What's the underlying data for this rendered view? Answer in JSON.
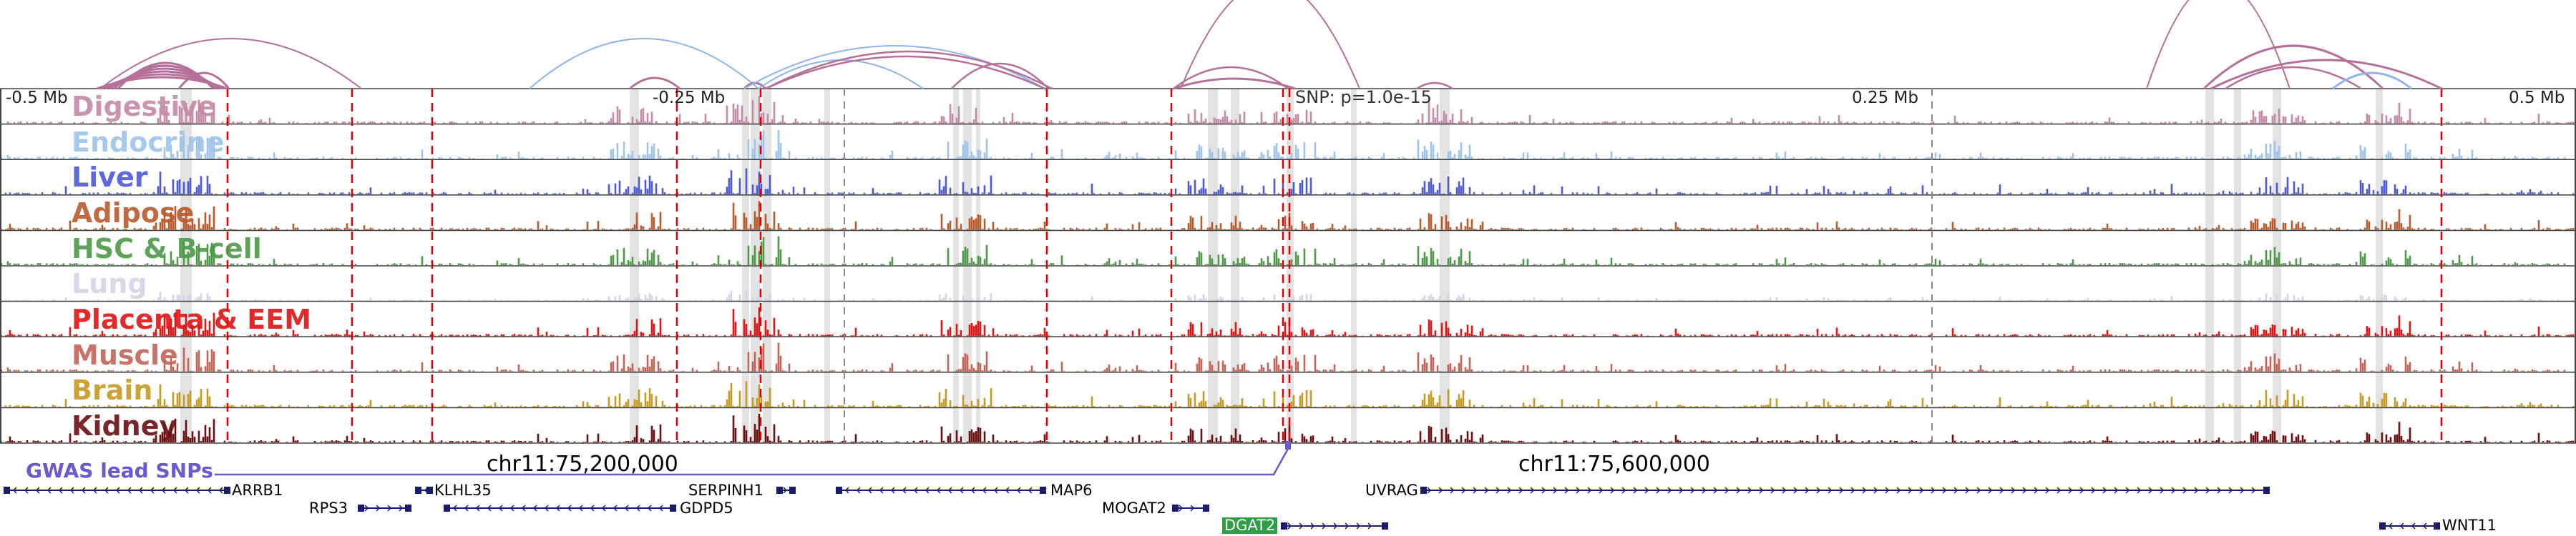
{
  "axis": {
    "ticks": [
      "-0.5 Mb",
      "-0.25 Mb",
      "0.25 Mb",
      "0.5 Mb"
    ],
    "snp_label": "SNP: p=1.0e-15"
  },
  "tracks": [
    {
      "name": "Digestive",
      "color": "#c48aa6"
    },
    {
      "name": "Endocrine",
      "color": "#9ec3ec"
    },
    {
      "name": "Liver",
      "color": "#4c59d9"
    },
    {
      "name": "Adipose",
      "color": "#b95a2c"
    },
    {
      "name": "HSC & B-cell",
      "color": "#4d9a48"
    },
    {
      "name": "Lung",
      "color": "#d5d3e6"
    },
    {
      "name": "Placenta & EEM",
      "color": "#e01414"
    },
    {
      "name": "Muscle",
      "color": "#c46458"
    },
    {
      "name": "Brain",
      "color": "#c79a22"
    },
    {
      "name": "Kidney",
      "color": "#6b0f13"
    }
  ],
  "coordinates": [
    "chr11:75,200,000",
    "chr11:75,600,000"
  ],
  "gwas_label": "GWAS lead SNPs",
  "genes": [
    {
      "name": "ARRB1",
      "strand": "-",
      "row": 0
    },
    {
      "name": "KLHL35",
      "strand": "-",
      "row": 0
    },
    {
      "name": "SERPINH1",
      "strand": "+",
      "row": 0
    },
    {
      "name": "MAP6",
      "strand": "-",
      "row": 0
    },
    {
      "name": "UVRAG",
      "strand": "+",
      "row": 0
    },
    {
      "name": "RPS3",
      "strand": "+",
      "row": 1
    },
    {
      "name": "GDPD5",
      "strand": "-",
      "row": 1
    },
    {
      "name": "MOGAT2",
      "strand": "+",
      "row": 1
    },
    {
      "name": "DGAT2",
      "strand": "+",
      "row": 2
    },
    {
      "name": "WNT11",
      "strand": "-",
      "row": 2
    }
  ],
  "colors": {
    "highlight": "#d9d9d9",
    "red_dash": "#e00000",
    "gene": "#1a1a6e",
    "gwas": "#6a5acd",
    "arc_pink": "#b5709a",
    "arc_blue": "#8fb4ec"
  }
}
